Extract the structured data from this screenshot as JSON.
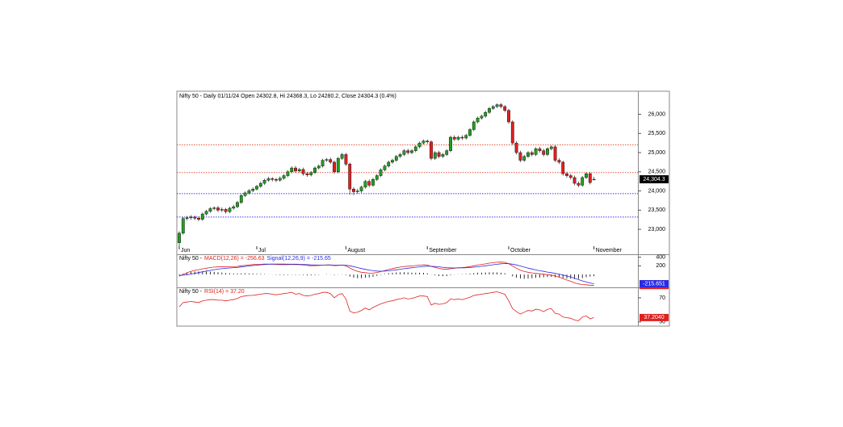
{
  "chart_data": [
    {
      "type": "candlestick",
      "title": "Nifty 50 - Daily 01/11/24 Open 24302.8, Hi 24368.3, Lo 24280.2, Close 24304.3 (0.4%)",
      "categories": [
        "Jun",
        null,
        null,
        null,
        null,
        null,
        null,
        null,
        null,
        null,
        null,
        null,
        null,
        null,
        null,
        null,
        null,
        null,
        null,
        null,
        "Jul",
        null,
        null,
        null,
        null,
        null,
        null,
        null,
        null,
        null,
        null,
        null,
        null,
        null,
        null,
        null,
        null,
        null,
        null,
        null,
        null,
        null,
        null,
        "August",
        null,
        null,
        null,
        null,
        null,
        null,
        null,
        null,
        null,
        null,
        null,
        null,
        null,
        null,
        null,
        null,
        null,
        null,
        null,
        null,
        "September",
        null,
        null,
        null,
        null,
        null,
        null,
        null,
        null,
        null,
        null,
        null,
        null,
        null,
        null,
        null,
        null,
        null,
        null,
        null,
        null,
        "October",
        null,
        null,
        null,
        null,
        null,
        null,
        null,
        null,
        null,
        null,
        null,
        null,
        null,
        null,
        null,
        null,
        null,
        null,
        null,
        null,
        null,
        "November"
      ],
      "open": [
        22650,
        22900,
        23280,
        23300,
        23320,
        23290,
        23260,
        23400,
        23470,
        23540,
        23560,
        23500,
        23520,
        23460,
        23550,
        23590,
        23700,
        23880,
        23950,
        24010,
        24050,
        24120,
        24200,
        24280,
        24320,
        24300,
        24280,
        24330,
        24400,
        24500,
        24600,
        24520,
        24560,
        24450,
        24420,
        24480,
        24600,
        24650,
        24800,
        24820,
        24750,
        24500,
        24850,
        24950,
        24700,
        24050,
        23980,
        24000,
        24100,
        24250,
        24150,
        24300,
        24400,
        24550,
        24650,
        24750,
        24800,
        24900,
        24950,
        25050,
        25000,
        25050,
        25150,
        25250,
        25300,
        25280,
        24850,
        25000,
        24900,
        24950,
        25050,
        25400,
        25350,
        25400,
        25380,
        25450,
        25600,
        25800,
        25900,
        25950,
        26050,
        26150,
        26200,
        26250,
        26200,
        26100,
        25800,
        25250,
        25000,
        24800,
        24900,
        25000,
        24950,
        25100,
        25050,
        24950,
        25100,
        25150,
        24800,
        24750,
        24450,
        24400,
        24350,
        24200,
        24150,
        24350,
        24450,
        24302.8
      ],
      "high": [
        22950,
        23320,
        23350,
        23370,
        23360,
        23330,
        23440,
        23510,
        23580,
        23600,
        23610,
        23570,
        23560,
        23590,
        23640,
        23740,
        23920,
        23990,
        24050,
        24090,
        24160,
        24240,
        24320,
        24370,
        24360,
        24340,
        24380,
        24440,
        24540,
        24640,
        24650,
        24600,
        24610,
        24500,
        24520,
        24640,
        24690,
        24840,
        24860,
        24870,
        24790,
        24890,
        24990,
        24990,
        24740,
        24100,
        24060,
        24140,
        24290,
        24300,
        24340,
        24440,
        24590,
        24690,
        24790,
        24840,
        24940,
        24990,
        25090,
        25100,
        25090,
        25190,
        25290,
        25340,
        25340,
        25320,
        25040,
        25050,
        24990,
        25090,
        25440,
        25450,
        25440,
        25450,
        25490,
        25640,
        25840,
        25940,
        25990,
        26090,
        26190,
        26240,
        26280,
        26290,
        26240,
        26140,
        25840,
        25300,
        25050,
        24940,
        25040,
        25050,
        25140,
        25150,
        25100,
        25140,
        25190,
        25190,
        24850,
        24790,
        24500,
        24450,
        24400,
        24250,
        24390,
        24490,
        24490,
        24368.3
      ],
      "low": [
        22550,
        22860,
        23230,
        23250,
        23240,
        23210,
        23220,
        23360,
        23430,
        23500,
        23450,
        23450,
        23410,
        23420,
        23510,
        23550,
        23660,
        23840,
        23910,
        23970,
        24010,
        24080,
        24160,
        24240,
        24250,
        24230,
        24240,
        24290,
        24360,
        24460,
        24470,
        24480,
        24400,
        24370,
        24380,
        24440,
        24560,
        24610,
        24760,
        24700,
        24450,
        24460,
        24810,
        24650,
        23900,
        23890,
        23930,
        23950,
        24060,
        24100,
        24110,
        24260,
        24360,
        24510,
        24610,
        24710,
        24760,
        24860,
        24910,
        24950,
        24960,
        25010,
        25110,
        25210,
        25230,
        24800,
        24810,
        24850,
        24860,
        24910,
        25010,
        25300,
        25310,
        25330,
        25340,
        25410,
        25560,
        25760,
        25860,
        25910,
        26010,
        26110,
        26160,
        26150,
        26050,
        25750,
        25200,
        24950,
        24750,
        24760,
        24860,
        24900,
        24910,
        25000,
        24900,
        24910,
        25060,
        24750,
        24700,
        24400,
        24350,
        24300,
        24150,
        24100,
        24110,
        24310,
        24170,
        24280.2
      ],
      "close": [
        22900,
        23280,
        23300,
        23320,
        23290,
        23260,
        23400,
        23470,
        23540,
        23560,
        23500,
        23520,
        23460,
        23550,
        23590,
        23700,
        23880,
        23950,
        24010,
        24050,
        24120,
        24200,
        24280,
        24320,
        24300,
        24280,
        24330,
        24400,
        24500,
        24600,
        24520,
        24560,
        24450,
        24420,
        24480,
        24600,
        24650,
        24800,
        24820,
        24750,
        24500,
        24850,
        24950,
        24700,
        24050,
        23980,
        24000,
        24100,
        24250,
        24150,
        24300,
        24400,
        24550,
        24650,
        24750,
        24800,
        24900,
        24950,
        25050,
        25000,
        25050,
        25150,
        25250,
        25300,
        25280,
        24850,
        25000,
        24900,
        24950,
        25050,
        25400,
        25350,
        25400,
        25380,
        25450,
        25600,
        25800,
        25900,
        25950,
        26050,
        26150,
        26200,
        26250,
        26200,
        26100,
        25800,
        25250,
        25000,
        24800,
        24900,
        25000,
        24950,
        25100,
        25050,
        24950,
        25100,
        25150,
        24800,
        24750,
        24450,
        24400,
        24350,
        24200,
        24150,
        24350,
        24450,
        24220,
        24304.3
      ],
      "value_label": "24,304.3",
      "up_color": "#22a022",
      "down_color": "#e02020",
      "ylim": [
        22350,
        26600
      ],
      "yticks": [
        {
          "value": 23000,
          "label": "23,000"
        },
        {
          "value": 23500,
          "label": "23,500"
        },
        {
          "value": 24000,
          "label": "24,000"
        },
        {
          "value": 24500,
          "label": "24,500"
        },
        {
          "value": 25000,
          "label": "25,000"
        },
        {
          "value": 25500,
          "label": "25,500"
        },
        {
          "value": 26000,
          "label": "26,000"
        }
      ],
      "levels": [
        {
          "value": 25200,
          "color": "#e8553a"
        },
        {
          "value": 24480,
          "color": "#e8553a"
        },
        {
          "value": 23930,
          "color": "#3a3ae8"
        },
        {
          "value": 23320,
          "color": "#3a3ae8"
        }
      ]
    },
    {
      "type": "line",
      "title": "Nifty 50 -",
      "series": [
        {
          "name": "MACD(12,26) = -256.63",
          "color": "#e02020",
          "value_label": "-256.633",
          "values": [
            -40,
            0,
            40,
            70,
            95,
            110,
            130,
            145,
            160,
            170,
            175,
            178,
            175,
            178,
            180,
            188,
            200,
            210,
            220,
            228,
            232,
            236,
            240,
            240,
            238,
            232,
            228,
            226,
            228,
            232,
            228,
            226,
            218,
            208,
            202,
            204,
            208,
            218,
            224,
            222,
            205,
            210,
            220,
            200,
            150,
            105,
            70,
            50,
            42,
            30,
            32,
            45,
            65,
            90,
            115,
            135,
            155,
            170,
            185,
            192,
            198,
            206,
            215,
            222,
            220,
            185,
            165,
            140,
            125,
            118,
            135,
            145,
            155,
            160,
            168,
            182,
            200,
            218,
            232,
            246,
            262,
            274,
            284,
            286,
            282,
            250,
            195,
            145,
            100,
            70,
            50,
            35,
            25,
            15,
            5,
            -5,
            -15,
            -40,
            -60,
            -95,
            -130,
            -160,
            -195,
            -220,
            -235,
            -240,
            -250,
            -256.633
          ]
        },
        {
          "name": "Signal(12,26,9) = -215.65",
          "color": "#2a2ae0",
          "value_label": "-215.651",
          "values": [
            -20,
            -16,
            -5,
            10,
            27,
            43,
            61,
            78,
            94,
            110,
            123,
            134,
            143,
            150,
            157,
            164,
            174,
            185,
            196,
            207,
            215,
            223,
            231,
            237,
            240,
            241,
            241,
            240,
            239,
            239,
            238,
            236,
            232,
            228,
            222,
            219,
            217,
            217,
            218,
            219,
            216,
            215,
            216,
            213,
            200,
            181,
            159,
            137,
            118,
            101,
            87,
            78,
            75,
            78,
            85,
            95,
            107,
            120,
            133,
            145,
            155,
            166,
            176,
            185,
            192,
            190,
            185,
            176,
            166,
            156,
            152,
            150,
            151,
            153,
            156,
            161,
            169,
            179,
            190,
            201,
            213,
            225,
            237,
            247,
            254,
            250,
            239,
            220,
            196,
            171,
            147,
            125,
            105,
            87,
            71,
            55,
            41,
            25,
            8,
            -13,
            -37,
            -62,
            -89,
            -120,
            -150,
            -175,
            -198,
            -215.651
          ]
        }
      ],
      "ylim": [
        -300,
        450
      ],
      "yticks": [
        400,
        200
      ]
    },
    {
      "type": "line",
      "title": "Nifty 50 -",
      "series": [
        {
          "name": "RSI(14) = 37.20",
          "color": "#e02020",
          "value_label": "37.2040",
          "values": [
            55,
            62,
            63,
            64,
            63,
            62,
            65,
            66,
            67,
            67,
            66,
            66,
            65,
            66,
            67,
            69,
            72,
            73,
            74,
            74,
            75,
            76,
            77,
            77,
            76,
            75,
            76,
            77,
            78,
            79,
            76,
            77,
            74,
            73,
            74,
            76,
            77,
            79,
            79,
            77,
            70,
            75,
            77,
            68,
            48,
            45,
            46,
            49,
            53,
            50,
            54,
            57,
            60,
            62,
            64,
            65,
            67,
            68,
            70,
            68,
            69,
            71,
            73,
            73,
            72,
            58,
            61,
            59,
            60,
            62,
            68,
            67,
            68,
            67,
            69,
            71,
            74,
            75,
            76,
            77,
            78,
            79,
            80,
            78,
            76,
            65,
            52,
            47,
            43,
            46,
            49,
            48,
            51,
            50,
            47,
            51,
            52,
            44,
            43,
            38,
            37,
            36,
            33,
            32,
            38,
            40,
            35,
            37.204
          ]
        }
      ],
      "ylim": [
        23,
        86
      ],
      "yticks": [
        70,
        30
      ]
    }
  ]
}
